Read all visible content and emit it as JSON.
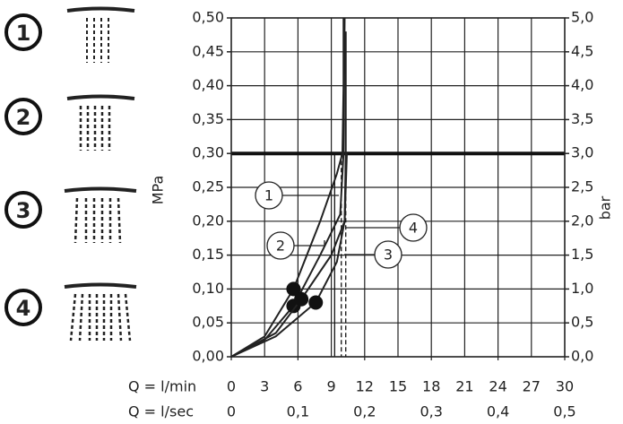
{
  "chart_data": {
    "type": "line",
    "x_label": "Q = l/min",
    "x2_label": "Q = l/sec",
    "y_label": "MPa",
    "y2_label": "bar",
    "xlim": [
      0,
      30
    ],
    "xticks": [
      0,
      3,
      6,
      9,
      12,
      15,
      18,
      21,
      24,
      27,
      30
    ],
    "x2lim": [
      0,
      0.5
    ],
    "x2ticks": [
      {
        "value": 0,
        "label": "0"
      },
      {
        "value": 0.1,
        "label": "0,1"
      },
      {
        "value": 0.2,
        "label": "0,2"
      },
      {
        "value": 0.3,
        "label": "0,3"
      },
      {
        "value": 0.4,
        "label": "0,4"
      },
      {
        "value": 0.5,
        "label": "0,5"
      }
    ],
    "ylim": [
      0,
      0.5
    ],
    "yticks": [
      {
        "value": 0,
        "label": "0,00"
      },
      {
        "value": 0.05,
        "label": "0,05"
      },
      {
        "value": 0.1,
        "label": "0,10"
      },
      {
        "value": 0.15,
        "label": "0,15"
      },
      {
        "value": 0.2,
        "label": "0,20"
      },
      {
        "value": 0.25,
        "label": "0,25"
      },
      {
        "value": 0.3,
        "label": "0,30"
      },
      {
        "value": 0.35,
        "label": "0,35"
      },
      {
        "value": 0.4,
        "label": "0,40"
      },
      {
        "value": 0.45,
        "label": "0,45"
      },
      {
        "value": 0.5,
        "label": "0,50"
      }
    ],
    "y2lim": [
      0,
      5
    ],
    "y2ticks": [
      {
        "value": 0,
        "label": "0,0"
      },
      {
        "value": 0.5,
        "label": "0,5"
      },
      {
        "value": 1,
        "label": "1,0"
      },
      {
        "value": 1.5,
        "label": "1,5"
      },
      {
        "value": 2,
        "label": "2,0"
      },
      {
        "value": 2.5,
        "label": "2,5"
      },
      {
        "value": 3,
        "label": "3,0"
      },
      {
        "value": 3.5,
        "label": "3,5"
      },
      {
        "value": 4,
        "label": "4,0"
      },
      {
        "value": 4.5,
        "label": "4,5"
      },
      {
        "value": 5,
        "label": "5,0"
      }
    ],
    "grid": true,
    "hline": 0.3,
    "vlines": [
      {
        "x": 9.3,
        "style": "solid"
      },
      {
        "x": 9.9,
        "style": "dashed"
      },
      {
        "x": 10.3,
        "style": "dashed"
      }
    ],
    "series": [
      {
        "name": "1",
        "color": "#222",
        "x": [
          0,
          3,
          5.6,
          8,
          9.5,
          10,
          10.1,
          10.1
        ],
        "values": [
          0,
          0.03,
          0.1,
          0.2,
          0.27,
          0.3,
          0.4,
          0.5
        ],
        "point": [
          5.6,
          0.1
        ]
      },
      {
        "name": "2",
        "color": "#222",
        "x": [
          0,
          3,
          5.6,
          8,
          9.8,
          10.1,
          10.2
        ],
        "values": [
          0,
          0.025,
          0.075,
          0.15,
          0.21,
          0.3,
          0.5
        ],
        "point": [
          5.6,
          0.075
        ]
      },
      {
        "name": "3",
        "color": "#222",
        "x": [
          0,
          4,
          7.6,
          9.5,
          10.2,
          10.3,
          10.3
        ],
        "values": [
          0,
          0.03,
          0.08,
          0.14,
          0.2,
          0.3,
          0.48
        ],
        "point": [
          7.6,
          0.08
        ]
      },
      {
        "name": "4",
        "color": "#222",
        "x": [
          0,
          4,
          6.3,
          9,
          10.2,
          10.4
        ],
        "values": [
          0,
          0.035,
          0.085,
          0.15,
          0.2,
          0.3
        ],
        "point": [
          6.3,
          0.085
        ]
      }
    ]
  }
}
